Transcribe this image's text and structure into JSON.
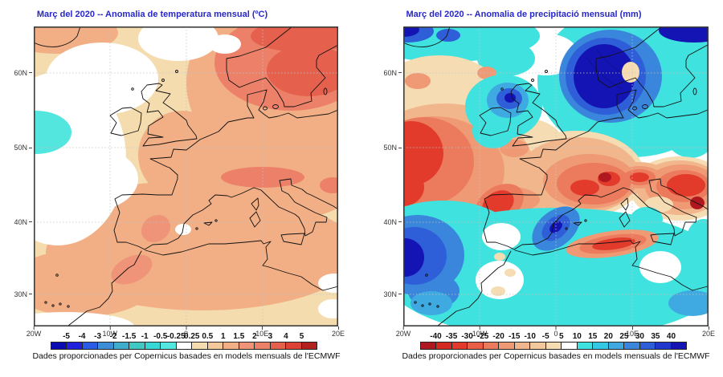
{
  "page": {
    "background": "#FFFFFF",
    "title_color": "#2727C8"
  },
  "panels": [
    {
      "title": "Març del 2020 -- Anomalia de temperatura mensual (ºC)",
      "y_ticks": [
        "60N",
        "50N",
        "40N",
        "30N"
      ],
      "x_ticks": [
        "20W",
        "10W",
        "0",
        "10E",
        "20E"
      ],
      "colorbar": {
        "labels": [
          "-5",
          "-4",
          "-3",
          "-2",
          "-1.5",
          "-1",
          "-0.5",
          "-0.25",
          "0.25",
          "0.5",
          "1",
          "1.5",
          "2",
          "3",
          "4",
          "5"
        ],
        "colors": [
          "#0B0BB2",
          "#2121DC",
          "#2A5CE6",
          "#3C8ED8",
          "#3FAECC",
          "#3FC8C4",
          "#35D8D4",
          "#52E6DE",
          "#FFFFFF",
          "#F5DCAE",
          "#F4C89A",
          "#F2AF85",
          "#EF9478",
          "#EC8068",
          "#E6604E",
          "#DC4334",
          "#B22020"
        ]
      },
      "caption": "Dades proporcionades per Copernicus basades en models mensuals de l'ECMWF"
    },
    {
      "title": "Març del 2020 -- Anomalia de precipitació mensual (mm)",
      "y_ticks": [
        "60N",
        "50N",
        "40N",
        "30N"
      ],
      "x_ticks": [
        "20W",
        "10W",
        "0",
        "10E",
        "20E"
      ],
      "colorbar": {
        "labels": [
          "-40",
          "-35",
          "-30",
          "-25",
          "-20",
          "-15",
          "-10",
          "-5",
          "5",
          "10",
          "15",
          "20",
          "25",
          "30",
          "35",
          "40"
        ],
        "colors": [
          "#B01820",
          "#D32B22",
          "#E23B2C",
          "#E85E47",
          "#EC7A5C",
          "#EF9A74",
          "#F2B68C",
          "#F2C89C",
          "#F5DCB2",
          "#FFFFFF",
          "#3FE2DE",
          "#35C8E4",
          "#3FAAE2",
          "#3A86DC",
          "#2F5FD8",
          "#2238CC",
          "#1414B4"
        ]
      },
      "caption": "Dades proporcionades per Copernicus basades en models mensuals de l'ECMWF"
    }
  ],
  "chart_data": [
    {
      "type": "heatmap",
      "variant": "filled-contour-weather-map",
      "title": "Març del 2020 -- Anomalia de temperatura mensual (ºC)",
      "units": "ºC",
      "region": {
        "lon_min": -20,
        "lon_max": 20,
        "lat_min": 26,
        "lat_max": 66
      },
      "x_tick_labels": [
        "20W",
        "10W",
        "0",
        "10E",
        "20E"
      ],
      "y_tick_labels": [
        "60N",
        "50N",
        "40N",
        "30N"
      ],
      "grid": "dotted gridlines every 10 degrees",
      "levels": [
        -5,
        -4,
        -3,
        -2,
        -1.5,
        -1,
        -0.5,
        -0.25,
        0.25,
        0.5,
        1,
        1.5,
        2,
        3,
        4,
        5
      ],
      "palette_low_to_high": [
        "#0B0BB2",
        "#2121DC",
        "#2A5CE6",
        "#3C8ED8",
        "#3FAECC",
        "#3FC8C4",
        "#35D8D4",
        "#52E6DE",
        "#FFFFFF",
        "#F5DCAE",
        "#F4C89A",
        "#F2AF85",
        "#EF9478",
        "#EC8068",
        "#E6604E",
        "#DC4334",
        "#B22020"
      ],
      "legend_position": "bottom",
      "features": [
        {
          "area": "most of domain (Europe / NE Atlantic / NW Africa)",
          "value_range": "+0.25 to +1.5"
        },
        {
          "area": "Scandinavia, Baltic and NE corner",
          "value_range": "+2 to +4 (maximum over Gulf of Bothnia)"
        },
        {
          "area": "Atlantic near 52N 20W (left edge)",
          "value_range": "-0.25 to -0.5 (small cool patch)"
        },
        {
          "area": "NE Atlantic west of Ireland and Biscay, bottom corners",
          "value_range": "-0.25 to +0.25 (white, near zero)"
        },
        {
          "area": "central and southern Iberia, northern Italy / Adriatic",
          "value_range": "+1.5 to +2 local maxima"
        }
      ]
    },
    {
      "type": "heatmap",
      "variant": "filled-contour-weather-map",
      "title": "Març del 2020 -- Anomalia de precipitació mensual (mm)",
      "units": "mm",
      "region": {
        "lon_min": -20,
        "lon_max": 20,
        "lat_min": 26,
        "lat_max": 66
      },
      "x_tick_labels": [
        "20W",
        "10W",
        "0",
        "10E",
        "20E"
      ],
      "y_tick_labels": [
        "60N",
        "50N",
        "40N",
        "30N"
      ],
      "grid": "dotted gridlines every 10 degrees",
      "levels": [
        -40,
        -35,
        -30,
        -25,
        -20,
        -15,
        -10,
        -5,
        5,
        10,
        15,
        20,
        25,
        30,
        35,
        40
      ],
      "palette_low_to_high": [
        "#B01820",
        "#D32B22",
        "#E23B2C",
        "#E85E47",
        "#EC7A5C",
        "#EF9A74",
        "#F2B68C",
        "#F2C89C",
        "#F5DCB2",
        "#FFFFFF",
        "#3FE2DE",
        "#35C8E4",
        "#3FAAE2",
        "#3A86DC",
        "#2F5FD8",
        "#2238CC",
        "#1414B4"
      ],
      "legend_position": "bottom",
      "features": [
        {
          "area": "coastal Norway / Norwegian Sea (dark blue maximum)",
          "value_range": "> +35 mm"
        },
        {
          "area": "Scotland cyclonic bullseye, Baltic, most of Mediterranean south of 40N",
          "value_range": "+5 to +25 mm"
        },
        {
          "area": "NE Spain coast / Balearic Sea blue core",
          "value_range": "+25 to +40 mm"
        },
        {
          "area": "band from mid-Atlantic across France to Adriatic, northern Iberia, Algerian coast",
          "value_range": "-5 to -30 mm"
        },
        {
          "area": "far west Atlantic edge near 45N and S France spots",
          "value_range": "< -30 mm (driest)"
        }
      ]
    }
  ]
}
